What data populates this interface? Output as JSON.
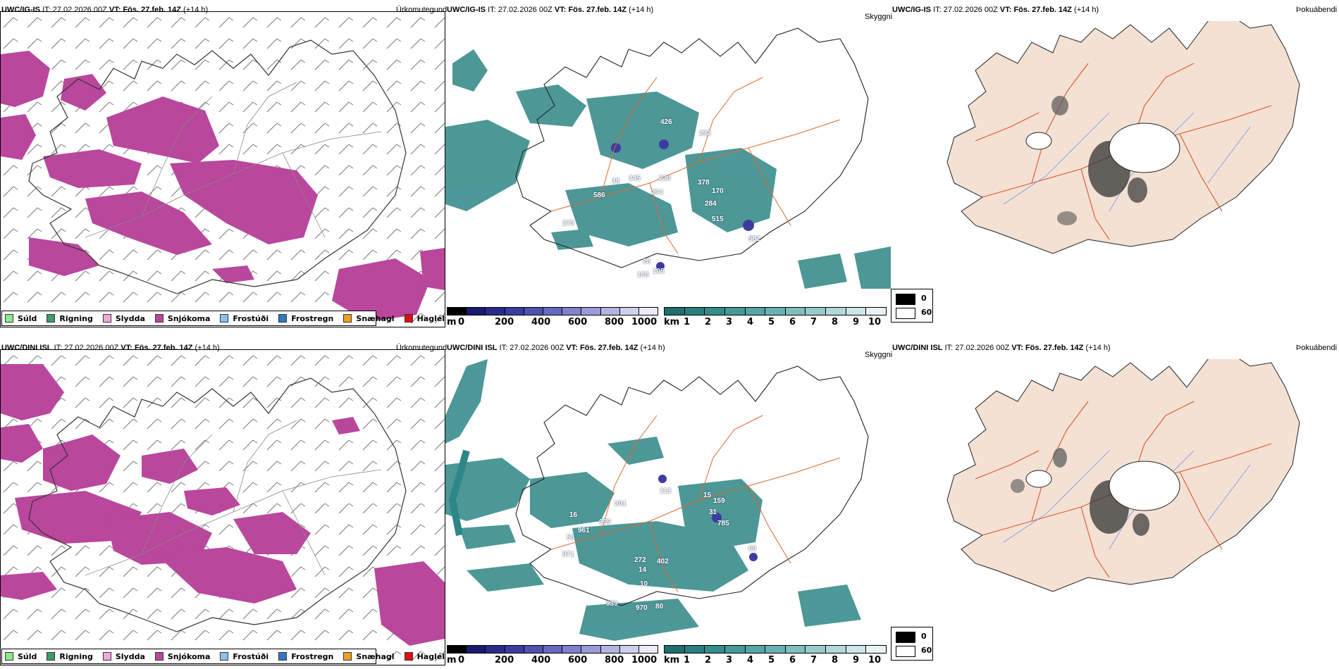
{
  "rows": [
    {
      "model_label": "UWC/IG-IS",
      "it_label": "IT:",
      "it_value": "27.02.2026 00Z",
      "vt_label": "VT:",
      "vt_value": "Fös. 27.feb. 14Z",
      "lead": "(+14 h)",
      "precip_title": "Úrkomutegund",
      "cloud_title": "Skyggni",
      "fog_title": "Þokuábendi",
      "cloud_numbers": [
        "426",
        "292",
        "345",
        "230",
        "378",
        "170",
        "586",
        "294",
        "284",
        "38",
        "515",
        "582",
        "275",
        "28",
        "108",
        "105"
      ]
    },
    {
      "model_label": "UWC/DINI ISL",
      "it_label": "IT:",
      "it_value": "27.02.2026 00Z",
      "vt_label": "VT:",
      "vt_value": "Fös. 27.feb. 14Z",
      "lead": "(+14 h)",
      "precip_title": "Úrkomutegund",
      "cloud_title": "Skyggni",
      "fog_title": "Þokuábendi",
      "cloud_numbers": [
        "113",
        "15",
        "159",
        "301",
        "31",
        "16",
        "959",
        "785",
        "961",
        "58",
        "68",
        "971",
        "272",
        "402",
        "14",
        "10",
        "939",
        "970",
        "80"
      ]
    }
  ],
  "precip_legend": [
    {
      "label": "Súld",
      "color": "#8ee88e"
    },
    {
      "label": "Rigning",
      "color": "#3b9c6c"
    },
    {
      "label": "Slydda",
      "color": "#f2a8d8"
    },
    {
      "label": "Snjókoma",
      "color": "#b9479c"
    },
    {
      "label": "Frostúði",
      "color": "#8cc0f0"
    },
    {
      "label": "Frostregn",
      "color": "#3278c0"
    },
    {
      "label": "Snæhagl",
      "color": "#f0a020"
    },
    {
      "label": "Haglél",
      "color": "#e01010"
    }
  ],
  "ceiling_bar": {
    "unit": "m",
    "labels": [
      "0",
      "200",
      "400",
      "600",
      "800",
      "1000"
    ],
    "colors": [
      "#000000",
      "#1a1a6e",
      "#2a2a8c",
      "#3c3ca0",
      "#5050b0",
      "#6868c0",
      "#8080cc",
      "#9a9ad8",
      "#b4b4e2",
      "#d0d0ee",
      "#ececf8"
    ]
  },
  "visibility_bar": {
    "unit": "km",
    "labels": [
      "1",
      "2",
      "3",
      "4",
      "5",
      "6",
      "7",
      "8",
      "9",
      "10"
    ],
    "colors": [
      "#1f6f6f",
      "#2a7e7e",
      "#358c8c",
      "#449a9a",
      "#55a6a6",
      "#6ab2b2",
      "#80bebe",
      "#98caca",
      "#b2d8d8",
      "#cde6e6",
      "#eaf4f4"
    ]
  },
  "fog_legend": {
    "high": "0",
    "low": "60"
  },
  "colors": {
    "snow": "#b9479c",
    "cloud": "#2e8686",
    "land": "#f3e1d3",
    "roads": "#e06a2c",
    "rivers": "#7a8ee8",
    "fog": "#444444"
  }
}
